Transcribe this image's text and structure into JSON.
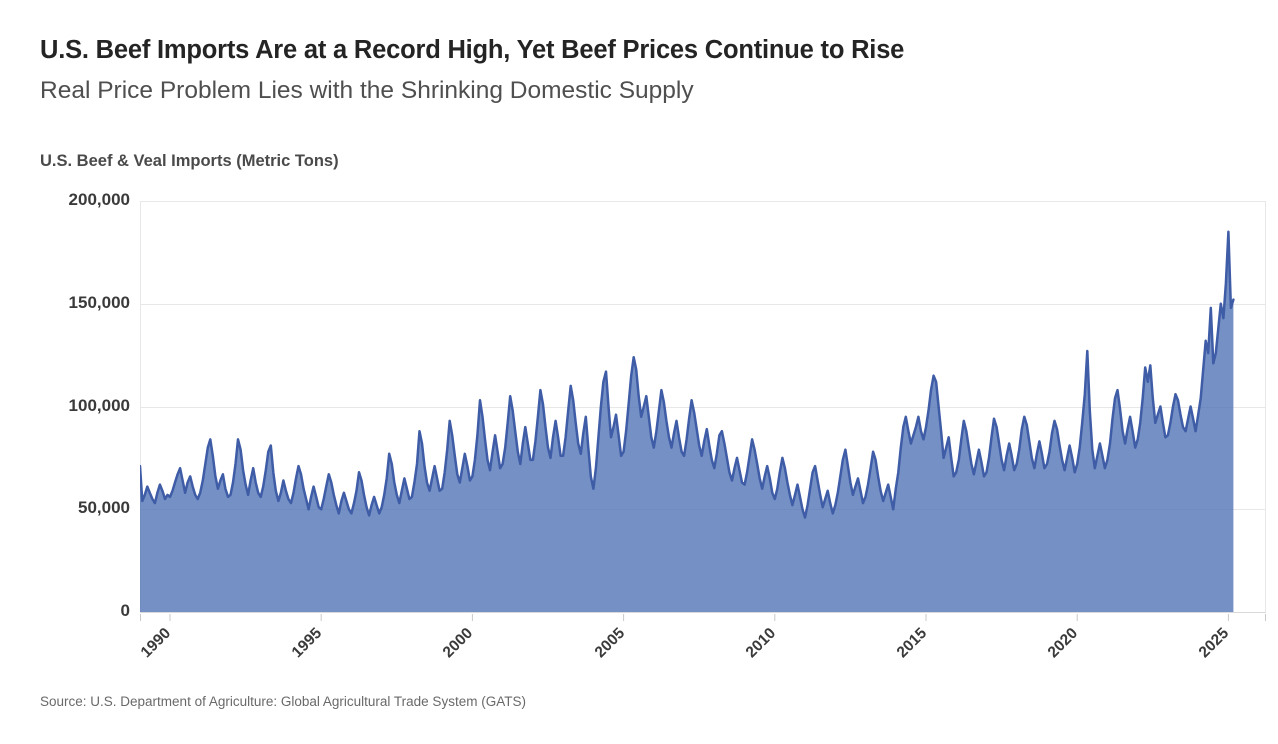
{
  "header": {
    "title": "U.S. Beef Imports Are at a Record High, Yet Beef Prices Continue to Rise",
    "subtitle": "Real Price Problem Lies with the Shrinking Domestic Supply"
  },
  "source": {
    "text": "Source: U.S. Department of Agriculture: Global Agricultural Trade System (GATS)"
  },
  "chart_data": {
    "type": "area",
    "title": "U.S. Beef & Veal Imports (Metric Tons)",
    "ylabel": "Metric Tons",
    "ylim": [
      0,
      200000
    ],
    "y_ticks": [
      0,
      50000,
      100000,
      150000,
      200000
    ],
    "y_tick_labels": [
      "0",
      "50,000",
      "100,000",
      "150,000",
      "200,000"
    ],
    "x_ticks": [
      1990,
      1995,
      2000,
      2005,
      2010,
      2015,
      2020,
      2025
    ],
    "x_tick_labels": [
      "1990",
      "1995",
      "2000",
      "2005",
      "2010",
      "2015",
      "2020",
      "2025"
    ],
    "x_start_month": "1989-01",
    "x_end_month": "2025-03",
    "grid": "horizontal",
    "legend": "none",
    "colors": {
      "area_fill": "#5274b5",
      "area_fill_opacity": 0.8,
      "line": "#3f5ca6",
      "grid": "#e7e7e7",
      "baseline": "#d9d9d9",
      "tick": "#c9c9c9",
      "axis_text": "#3a3a3a"
    },
    "monthly_values": [
      71000,
      54000,
      57000,
      61000,
      58000,
      55000,
      53000,
      58000,
      62000,
      59000,
      55000,
      57000,
      56000,
      59000,
      63000,
      67000,
      70000,
      64000,
      58000,
      63000,
      66000,
      61000,
      57000,
      55000,
      58000,
      64000,
      72000,
      80000,
      84000,
      76000,
      66000,
      60000,
      64000,
      67000,
      60000,
      56000,
      57000,
      63000,
      72000,
      84000,
      79000,
      69000,
      62000,
      57000,
      64000,
      70000,
      63000,
      58000,
      56000,
      61000,
      69000,
      78000,
      81000,
      68000,
      59000,
      54000,
      58000,
      64000,
      59000,
      55000,
      53000,
      58000,
      65000,
      71000,
      67000,
      60000,
      55000,
      50000,
      56000,
      61000,
      56000,
      51000,
      50000,
      55000,
      61000,
      67000,
      63000,
      57000,
      52000,
      48000,
      54000,
      58000,
      54000,
      50000,
      48000,
      53000,
      59000,
      68000,
      64000,
      57000,
      51000,
      47000,
      52000,
      56000,
      52000,
      48000,
      51000,
      57000,
      65000,
      77000,
      72000,
      63000,
      57000,
      53000,
      59000,
      65000,
      60000,
      55000,
      56000,
      63000,
      72000,
      88000,
      82000,
      71000,
      63000,
      59000,
      65000,
      71000,
      65000,
      59000,
      60000,
      68000,
      79000,
      93000,
      86000,
      76000,
      67000,
      63000,
      70000,
      77000,
      71000,
      64000,
      66000,
      74000,
      86000,
      103000,
      95000,
      84000,
      74000,
      69000,
      78000,
      86000,
      78000,
      70000,
      72000,
      80000,
      92000,
      105000,
      98000,
      88000,
      78000,
      72000,
      82000,
      90000,
      82000,
      74000,
      74000,
      83000,
      95000,
      108000,
      101000,
      90000,
      80000,
      75000,
      85000,
      93000,
      85000,
      76000,
      76000,
      85000,
      98000,
      110000,
      103000,
      92000,
      82000,
      77000,
      87000,
      95000,
      80000,
      66000,
      60000,
      70000,
      85000,
      100000,
      112000,
      117000,
      100000,
      85000,
      90000,
      96000,
      86000,
      76000,
      78000,
      88000,
      101000,
      115000,
      124000,
      118000,
      105000,
      95000,
      100000,
      105000,
      95000,
      85000,
      80000,
      88000,
      98000,
      108000,
      102000,
      93000,
      85000,
      80000,
      87000,
      93000,
      85000,
      78000,
      76000,
      84000,
      94000,
      103000,
      97000,
      89000,
      81000,
      76000,
      83000,
      89000,
      81000,
      74000,
      70000,
      77000,
      86000,
      88000,
      82000,
      75000,
      68000,
      64000,
      70000,
      75000,
      69000,
      63000,
      62000,
      68000,
      76000,
      84000,
      79000,
      72000,
      65000,
      60000,
      66000,
      71000,
      65000,
      58000,
      55000,
      60000,
      68000,
      75000,
      70000,
      63000,
      57000,
      52000,
      57000,
      62000,
      56000,
      50000,
      46000,
      52000,
      60000,
      68000,
      71000,
      64000,
      57000,
      51000,
      55000,
      59000,
      53000,
      48000,
      52000,
      58000,
      66000,
      74000,
      79000,
      71000,
      63000,
      57000,
      61000,
      65000,
      59000,
      53000,
      56000,
      62000,
      70000,
      78000,
      74000,
      66000,
      59000,
      54000,
      58000,
      62000,
      56000,
      50000,
      60000,
      68000,
      80000,
      90000,
      95000,
      88000,
      82000,
      86000,
      90000,
      95000,
      88000,
      84000,
      90000,
      98000,
      108000,
      115000,
      112000,
      100000,
      88000,
      75000,
      80000,
      85000,
      75000,
      66000,
      68000,
      74000,
      84000,
      93000,
      88000,
      80000,
      72000,
      67000,
      73000,
      79000,
      73000,
      66000,
      68000,
      75000,
      85000,
      94000,
      90000,
      82000,
      74000,
      69000,
      76000,
      82000,
      76000,
      69000,
      72000,
      79000,
      89000,
      95000,
      91000,
      83000,
      75000,
      70000,
      77000,
      83000,
      77000,
      70000,
      72000,
      78000,
      87000,
      93000,
      89000,
      81000,
      74000,
      69000,
      75000,
      81000,
      75000,
      68000,
      72000,
      80000,
      92000,
      106000,
      127000,
      98000,
      79000,
      70000,
      76000,
      82000,
      76000,
      70000,
      74000,
      82000,
      94000,
      104000,
      108000,
      99000,
      88000,
      82000,
      89000,
      95000,
      88000,
      80000,
      84000,
      92000,
      104000,
      119000,
      112000,
      120000,
      104000,
      92000,
      96000,
      100000,
      92000,
      85000,
      86000,
      92000,
      100000,
      106000,
      103000,
      96000,
      90000,
      88000,
      94000,
      100000,
      94000,
      88000,
      96000,
      104000,
      118000,
      132000,
      126000,
      148000,
      121000,
      126000,
      138000,
      150000,
      143000,
      160000,
      185000,
      148000,
      152000
    ]
  }
}
